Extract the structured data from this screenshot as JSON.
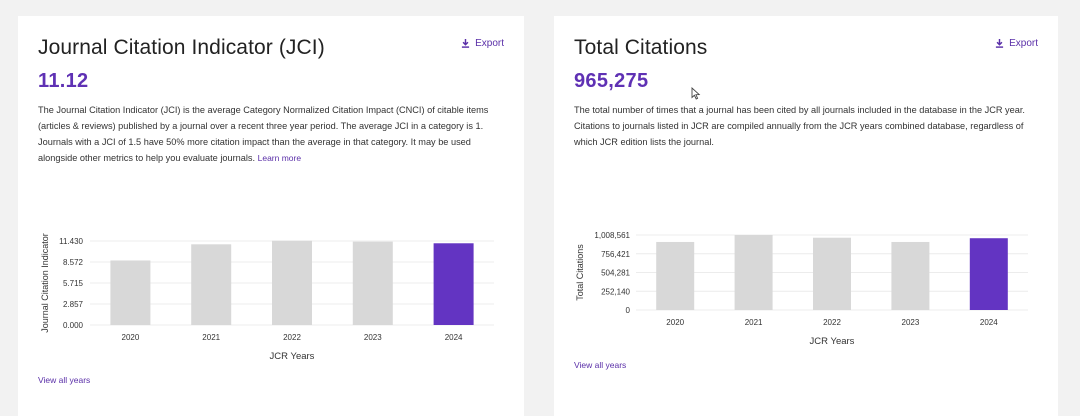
{
  "jci_card": {
    "title": "Journal Citation Indicator (JCI)",
    "export_label": "Export",
    "value": "11.12",
    "description": "The Journal Citation Indicator (JCI) is the average Category Normalized Citation Impact (CNCI) of citable items (articles & reviews) published by a journal over a recent three year period. The average JCI in a category is 1. Journals with a JCI of 1.5 have 50% more citation impact than the average in that category. It may be used alongside other metrics to help you evaluate journals.",
    "learn_more": "Learn more",
    "view_all": "View all years"
  },
  "tc_card": {
    "title": "Total Citations",
    "export_label": "Export",
    "value": "965,275",
    "description": "The total number of times that a journal has been cited by all journals included in the database in the JCR year. Citations to journals listed in JCR are compiled annually from the JCR years combined database, regardless of which JCR edition lists the journal.",
    "view_all": "View all years"
  },
  "colors": {
    "accent": "#5f31b4",
    "bar_default": "#d8d8d8",
    "bar_highlight": "#6334c2"
  },
  "icons": {
    "export": "download-icon",
    "cursor": "mouse-pointer-icon"
  },
  "chart_data": [
    {
      "type": "bar",
      "categories": [
        "2020",
        "2021",
        "2022",
        "2023",
        "2024"
      ],
      "values": [
        8.78,
        10.98,
        11.47,
        11.34,
        11.12
      ],
      "highlight_index": 4,
      "xlabel": "JCR Years",
      "ylabel": "Journal Citation Indicator",
      "yticks": [
        "0.000",
        "2.857",
        "5.715",
        "8.572",
        "11.430"
      ],
      "ylim": [
        0,
        11.43
      ],
      "grid": true
    },
    {
      "type": "bar",
      "categories": [
        "2020",
        "2021",
        "2022",
        "2023",
        "2024"
      ],
      "values": [
        915000,
        1008561,
        972000,
        915000,
        965275
      ],
      "highlight_index": 4,
      "xlabel": "JCR Years",
      "ylabel": "Total Citations",
      "yticks": [
        "0",
        "252,140",
        "504,281",
        "756,421",
        "1,008,561"
      ],
      "ylim": [
        0,
        1008561
      ],
      "grid": true
    }
  ]
}
